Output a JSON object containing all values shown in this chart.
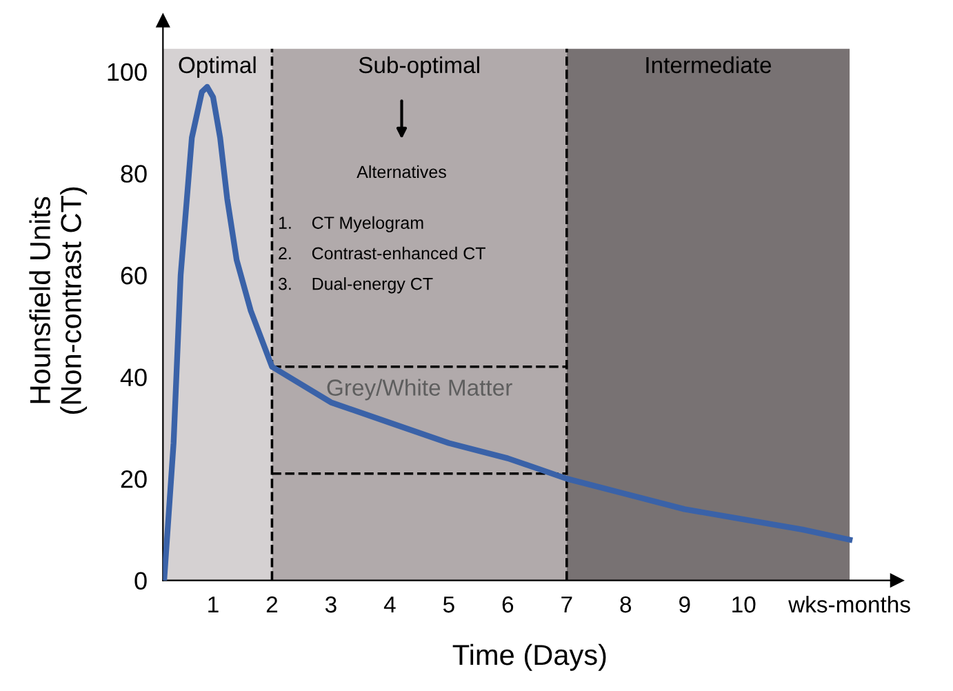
{
  "chart_data": {
    "type": "line",
    "xlabel": "Time (Days)",
    "ylabel": "Hounsfield Units\n(Non-contrast CT)",
    "x": [
      0.17,
      0.33,
      0.45,
      0.64,
      0.81,
      0.9,
      1.0,
      1.12,
      1.24,
      1.4,
      1.64,
      2.0,
      3,
      4,
      5,
      6,
      7,
      8,
      9,
      10,
      11,
      11.8
    ],
    "series": [
      {
        "color": "#3a62a8",
        "values": [
          0,
          27,
          60,
          87,
          96,
          97,
          95,
          87,
          75,
          63,
          53,
          42,
          35,
          31,
          27,
          24,
          20,
          17,
          14,
          12,
          10,
          8
        ]
      }
    ],
    "xlim": [
      0.15,
      12.6
    ],
    "ylim": [
      0,
      110
    ],
    "xticks": [
      1,
      2,
      3,
      4,
      5,
      6,
      7,
      8,
      9,
      10,
      {
        "value": 11.8,
        "label": "wks-months"
      }
    ],
    "yticks": [
      0,
      20,
      40,
      60,
      80,
      100
    ],
    "bands": [
      {
        "axis": "x",
        "from": 0.15,
        "to": 2,
        "label": "Optimal",
        "color": "#d5d1d2"
      },
      {
        "axis": "x",
        "from": 2,
        "to": 7,
        "label": "Sub-optimal",
        "color": "#b1aaab"
      },
      {
        "axis": "x",
        "from": 7,
        "to": 11.8,
        "label": "Intermediate",
        "color": "#787273"
      }
    ],
    "ref_lines": [
      {
        "axis": "x",
        "value": 2,
        "color": "#000000",
        "line_style": "dashed"
      },
      {
        "axis": "x",
        "value": 7,
        "color": "#000000",
        "line_style": "dashed"
      },
      {
        "axis": "y",
        "value": 42,
        "color": "#000000",
        "line_style": "dashed"
      },
      {
        "axis": "y",
        "value": 21,
        "color": "#000000",
        "line_style": "dashed"
      }
    ],
    "annotations": [
      "Alternatives",
      "1.    CT Myelogram",
      "2.    Contrast-enhanced CT",
      "3.    Dual-energy CT",
      "Grey/White Matter"
    ],
    "marker": "none",
    "line_style": "solid",
    "grid": false,
    "legend": false
  }
}
